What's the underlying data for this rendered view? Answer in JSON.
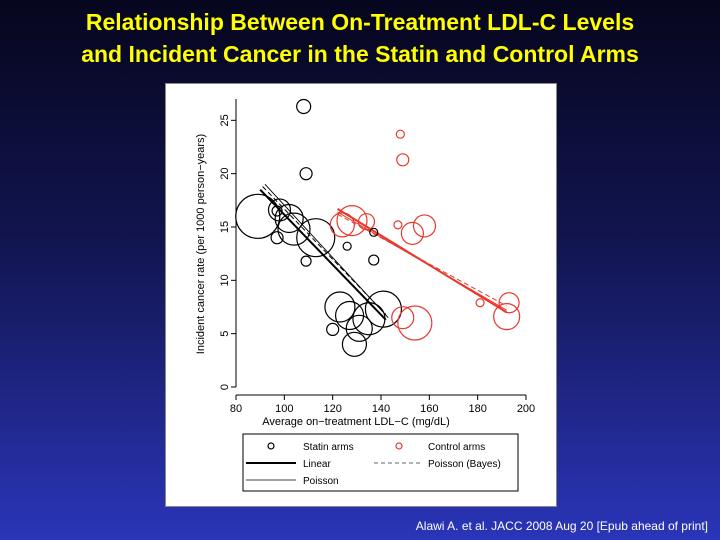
{
  "slide": {
    "title_line1": "Relationship Between On-Treatment LDL-C Levels",
    "title_line2": "and Incident Cancer in the Statin and Control Arms",
    "citation": "Alawi A. et al. JACC 2008 Aug 20 [Epub ahead of print]"
  },
  "colors": {
    "title": "#ffff00",
    "statin": "#000000",
    "control": "#e8382c"
  },
  "chart_data": {
    "type": "scatter",
    "xlabel": "Average on−treatment LDL−C (mg/dL)",
    "ylabel": "Incident cancer rate (per 1000 person−years)",
    "xlim": [
      80,
      200
    ],
    "ylim": [
      0,
      27
    ],
    "xticks": [
      80,
      100,
      120,
      140,
      160,
      180,
      200
    ],
    "yticks": [
      0,
      5,
      10,
      15,
      20,
      25
    ],
    "legend_placement": "bottom",
    "legend": {
      "statin": "Statin arms",
      "control": "Control arms",
      "linear": "Linear",
      "poisson_bayes": "Poisson (Bayes)",
      "poisson": "Poisson"
    },
    "series": [
      {
        "name": "Statin arms",
        "points": [
          {
            "x": 108,
            "y": 26.3,
            "size": 7
          },
          {
            "x": 89,
            "y": 16,
            "size": 22
          },
          {
            "x": 98,
            "y": 16.6,
            "size": 11
          },
          {
            "x": 97,
            "y": 16.5,
            "size": 5
          },
          {
            "x": 102,
            "y": 15.8,
            "size": 14
          },
          {
            "x": 104,
            "y": 14.8,
            "size": 16
          },
          {
            "x": 97,
            "y": 14.0,
            "size": 6
          },
          {
            "x": 109,
            "y": 20.0,
            "size": 6
          },
          {
            "x": 113,
            "y": 14.0,
            "size": 19
          },
          {
            "x": 109,
            "y": 11.8,
            "size": 5
          },
          {
            "x": 126,
            "y": 13.2,
            "size": 4
          },
          {
            "x": 137,
            "y": 14.5,
            "size": 4
          },
          {
            "x": 137,
            "y": 11.9,
            "size": 5
          },
          {
            "x": 123,
            "y": 7.5,
            "size": 15
          },
          {
            "x": 127,
            "y": 6.7,
            "size": 14
          },
          {
            "x": 141,
            "y": 7.3,
            "size": 18
          },
          {
            "x": 135,
            "y": 6.4,
            "size": 16
          },
          {
            "x": 131,
            "y": 5.5,
            "size": 13
          },
          {
            "x": 129,
            "y": 4.0,
            "size": 12
          },
          {
            "x": 120,
            "y": 5.4,
            "size": 6
          }
        ]
      },
      {
        "name": "Control arms",
        "points": [
          {
            "x": 148,
            "y": 23.7,
            "size": 4
          },
          {
            "x": 149,
            "y": 21.3,
            "size": 6
          },
          {
            "x": 128,
            "y": 15.6,
            "size": 15
          },
          {
            "x": 124,
            "y": 15.2,
            "size": 12
          },
          {
            "x": 134,
            "y": 15.5,
            "size": 8
          },
          {
            "x": 147,
            "y": 15.2,
            "size": 4
          },
          {
            "x": 153,
            "y": 14.4,
            "size": 11
          },
          {
            "x": 158,
            "y": 15.1,
            "size": 11
          },
          {
            "x": 149,
            "y": 6.5,
            "size": 11
          },
          {
            "x": 154,
            "y": 6.0,
            "size": 17
          },
          {
            "x": 181,
            "y": 7.9,
            "size": 4
          },
          {
            "x": 193,
            "y": 7.9,
            "size": 10
          },
          {
            "x": 192,
            "y": 6.6,
            "size": 13
          }
        ]
      }
    ],
    "fits": [
      {
        "group": "statin",
        "style": "linear",
        "x": [
          90,
          142
        ],
        "y": [
          18.5,
          6.3
        ]
      },
      {
        "group": "statin",
        "style": "poisson_bayes",
        "x": [
          91,
          142
        ],
        "y": [
          18.8,
          6.8
        ]
      },
      {
        "group": "statin",
        "style": "poisson",
        "x": [
          92,
          143
        ],
        "y": [
          19.0,
          6.5
        ]
      },
      {
        "group": "control",
        "style": "linear",
        "x": [
          122,
          192
        ],
        "y": [
          16.7,
          7.0
        ]
      },
      {
        "group": "control",
        "style": "poisson_bayes",
        "x": [
          122,
          192
        ],
        "y": [
          16.2,
          7.6
        ]
      },
      {
        "group": "control",
        "style": "poisson",
        "x": [
          122,
          192
        ],
        "y": [
          16.4,
          7.2
        ]
      }
    ]
  }
}
